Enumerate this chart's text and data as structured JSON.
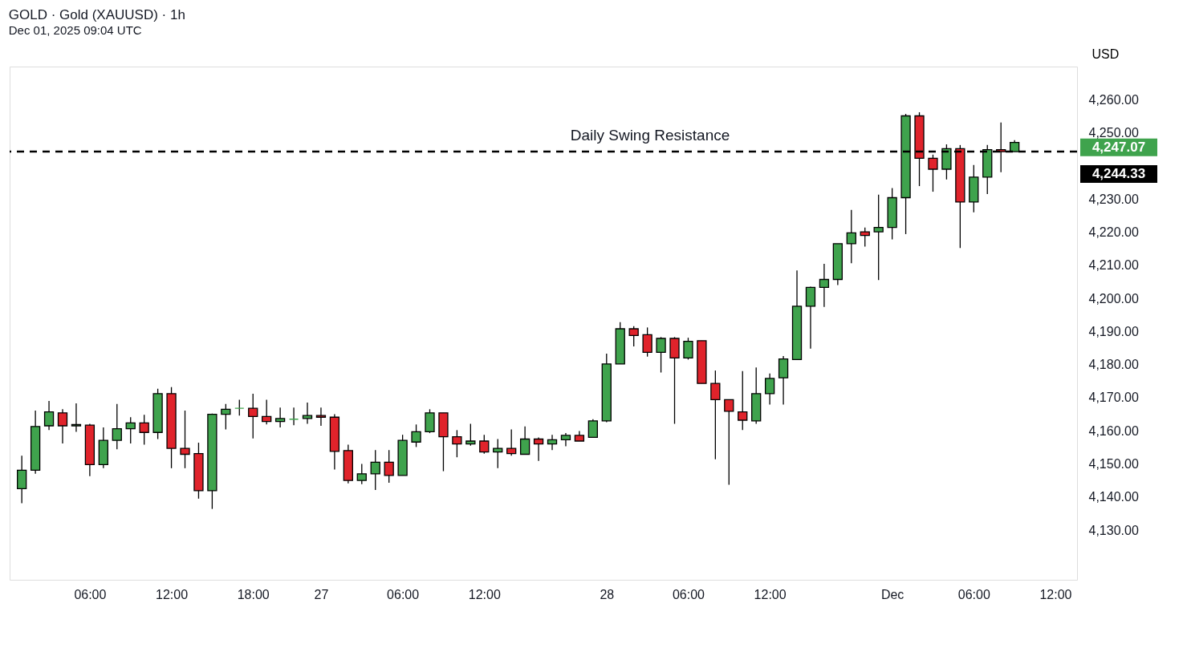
{
  "chart_data": {
    "type": "candlestick",
    "title": "GOLD · Gold (XAUUSD) · 1h",
    "subtitle": "Dec 01, 2025 09:04 UTC",
    "ylabel": "USD",
    "categories": [
      null,
      null,
      null,
      null,
      null,
      "06:00",
      null,
      null,
      null,
      null,
      null,
      "12:00",
      null,
      null,
      null,
      null,
      null,
      "18:00",
      null,
      null,
      null,
      null,
      "27",
      null,
      null,
      null,
      null,
      null,
      "06:00",
      null,
      null,
      null,
      null,
      null,
      "12:00",
      null,
      null,
      null,
      null,
      null,
      null,
      null,
      null,
      "28",
      null,
      null,
      null,
      null,
      null,
      "06:00",
      null,
      null,
      null,
      null,
      null,
      "12:00",
      null,
      null,
      null,
      null,
      null,
      null,
      null,
      null,
      "Dec",
      null,
      null,
      null,
      null,
      null,
      "06:00",
      null,
      null,
      null,
      null,
      null,
      "12:00",
      null
    ],
    "ohlc": [
      [
        4142.5,
        4152.5,
        4138.1,
        4148.1
      ],
      [
        4148.1,
        4166.1,
        4147.0,
        4161.3
      ],
      [
        4161.5,
        4169.0,
        4160.2,
        4165.7
      ],
      [
        4165.4,
        4166.5,
        4156.2,
        4161.5
      ],
      [
        4161.5,
        4168.3,
        4159.7,
        4161.9
      ],
      [
        4161.7,
        4162.1,
        4146.3,
        4149.8
      ],
      [
        4149.8,
        4161.0,
        4148.7,
        4157.1
      ],
      [
        4157.1,
        4168.1,
        4154.4,
        4160.6
      ],
      [
        4160.6,
        4164.1,
        4156.2,
        4162.4
      ],
      [
        4162.4,
        4164.8,
        4155.8,
        4159.5
      ],
      [
        4159.5,
        4172.7,
        4157.5,
        4171.2
      ],
      [
        4171.2,
        4173.2,
        4148.7,
        4154.7
      ],
      [
        4154.7,
        4166.1,
        4148.7,
        4152.9
      ],
      [
        4153.1,
        4156.4,
        4139.5,
        4141.9
      ],
      [
        4141.9,
        4165.2,
        4136.4,
        4165.0
      ],
      [
        4165.0,
        4168.1,
        4160.4,
        4166.5
      ],
      [
        4166.8,
        4169.4,
        4164.6,
        4166.8
      ],
      [
        4166.8,
        4171.2,
        4157.7,
        4164.3
      ],
      [
        4164.3,
        4169.4,
        4161.9,
        4162.8
      ],
      [
        4162.8,
        4167.0,
        4161.0,
        4163.7
      ],
      [
        4163.5,
        4167.0,
        4161.7,
        4163.5
      ],
      [
        4163.7,
        4168.5,
        4162.1,
        4164.6
      ],
      [
        4164.6,
        4167.0,
        4161.5,
        4164.1
      ],
      [
        4164.1,
        4165.0,
        4148.3,
        4153.8
      ],
      [
        4154.0,
        4155.8,
        4144.1,
        4145.0
      ],
      [
        4145.0,
        4150.0,
        4143.9,
        4147.0
      ],
      [
        4147.0,
        4154.2,
        4142.1,
        4150.5
      ],
      [
        4150.5,
        4154.2,
        4144.3,
        4146.5
      ],
      [
        4146.5,
        4158.8,
        4146.5,
        4157.1
      ],
      [
        4156.6,
        4161.9,
        4155.1,
        4159.7
      ],
      [
        4159.7,
        4166.5,
        4159.3,
        4165.4
      ],
      [
        4165.4,
        4165.4,
        4147.8,
        4158.2
      ],
      [
        4158.2,
        4160.2,
        4152.0,
        4156.0
      ],
      [
        4156.0,
        4162.1,
        4155.5,
        4156.9
      ],
      [
        4156.9,
        4158.8,
        4153.1,
        4153.6
      ],
      [
        4153.6,
        4157.5,
        4148.7,
        4154.7
      ],
      [
        4154.7,
        4160.4,
        4152.5,
        4153.1
      ],
      [
        4152.9,
        4161.3,
        4152.9,
        4157.5
      ],
      [
        4157.5,
        4158.0,
        4150.9,
        4156.0
      ],
      [
        4156.0,
        4158.8,
        4154.2,
        4157.3
      ],
      [
        4157.3,
        4159.3,
        4155.3,
        4158.6
      ],
      [
        4158.6,
        4159.9,
        4156.9,
        4156.9
      ],
      [
        4158.0,
        4163.5,
        4158.0,
        4163.0
      ],
      [
        4163.0,
        4183.3,
        4162.6,
        4180.2
      ],
      [
        4180.2,
        4192.8,
        4180.2,
        4190.8
      ],
      [
        4190.8,
        4191.6,
        4185.5,
        4188.8
      ],
      [
        4189.0,
        4191.2,
        4182.4,
        4183.7
      ],
      [
        4183.7,
        4188.3,
        4177.6,
        4187.9
      ],
      [
        4187.9,
        4188.3,
        4162.1,
        4182.0
      ],
      [
        4182.0,
        4188.1,
        4181.5,
        4187.0
      ],
      [
        4187.2,
        4187.2,
        4174.3,
        4174.3
      ],
      [
        4174.3,
        4178.2,
        4151.4,
        4169.4
      ],
      [
        4169.4,
        4169.4,
        4143.7,
        4165.9
      ],
      [
        4165.7,
        4178.0,
        4160.2,
        4163.2
      ],
      [
        4163.0,
        4179.1,
        4162.1,
        4171.2
      ],
      [
        4171.2,
        4177.3,
        4167.9,
        4175.8
      ],
      [
        4176.0,
        4182.6,
        4167.9,
        4181.7
      ],
      [
        4181.5,
        4208.4,
        4181.5,
        4197.6
      ],
      [
        4197.6,
        4203.5,
        4184.8,
        4203.3
      ],
      [
        4203.3,
        4210.4,
        4197.4,
        4205.7
      ],
      [
        4205.7,
        4216.5,
        4204.0,
        4216.5
      ],
      [
        4216.5,
        4226.7,
        4210.6,
        4219.8
      ],
      [
        4220.1,
        4221.4,
        4215.6,
        4219.0
      ],
      [
        4220.1,
        4231.3,
        4205.5,
        4221.4
      ],
      [
        4221.4,
        4233.3,
        4217.8,
        4230.4
      ],
      [
        4230.4,
        4255.7,
        4219.4,
        4255.1
      ],
      [
        4255.1,
        4256.2,
        4233.9,
        4242.3
      ],
      [
        4242.3,
        4243.4,
        4232.2,
        4239.0
      ],
      [
        4239.0,
        4246.5,
        4235.9,
        4245.2
      ],
      [
        4245.2,
        4246.3,
        4215.2,
        4229.1
      ],
      [
        4229.1,
        4240.3,
        4226.0,
        4236.6
      ],
      [
        4236.6,
        4246.3,
        4231.5,
        4244.9
      ],
      [
        4244.9,
        4253.1,
        4238.1,
        4244.3
      ],
      [
        4244.3,
        4247.8,
        4244.3,
        4247.07
      ],
      null,
      null,
      null,
      null
    ],
    "colors": [
      "#3fa34d",
      "#3fa34d",
      "#3fa34d",
      "#e0232b",
      "#3fa34d",
      "#e0232b",
      "#3fa34d",
      "#3fa34d",
      "#3fa34d",
      "#e0232b",
      "#3fa34d",
      "#e0232b",
      "#e0232b",
      "#e0232b",
      "#3fa34d",
      "#3fa34d",
      "#3fa34d",
      "#e0232b",
      "#e0232b",
      "#3fa34d",
      "#3fa34d",
      "#3fa34d",
      "#e0232b",
      "#e0232b",
      "#e0232b",
      "#3fa34d",
      "#3fa34d",
      "#e0232b",
      "#3fa34d",
      "#3fa34d",
      "#3fa34d",
      "#e0232b",
      "#e0232b",
      "#3fa34d",
      "#e0232b",
      "#3fa34d",
      "#e0232b",
      "#3fa34d",
      "#e0232b",
      "#3fa34d",
      "#3fa34d",
      "#e0232b",
      "#3fa34d",
      "#3fa34d",
      "#3fa34d",
      "#e0232b",
      "#e0232b",
      "#3fa34d",
      "#e0232b",
      "#3fa34d",
      "#e0232b",
      "#e0232b",
      "#e0232b",
      "#e0232b",
      "#3fa34d",
      "#3fa34d",
      "#3fa34d",
      "#3fa34d",
      "#3fa34d",
      "#3fa34d",
      "#3fa34d",
      "#3fa34d",
      "#e0232b",
      "#3fa34d",
      "#3fa34d",
      "#3fa34d",
      "#e0232b",
      "#e0232b",
      "#3fa34d",
      "#e0232b",
      "#3fa34d",
      "#3fa34d",
      "#e0232b",
      "#3fa34d",
      null,
      null,
      null,
      null
    ],
    "ylim": [
      4115,
      4270
    ],
    "yticks": [
      {
        "value": 4130,
        "label": "4,130.00"
      },
      {
        "value": 4140,
        "label": "4,140.00"
      },
      {
        "value": 4150,
        "label": "4,150.00"
      },
      {
        "value": 4160,
        "label": "4,160.00"
      },
      {
        "value": 4170,
        "label": "4,170.00"
      },
      {
        "value": 4180,
        "label": "4,180.00"
      },
      {
        "value": 4190,
        "label": "4,190.00"
      },
      {
        "value": 4200,
        "label": "4,200.00"
      },
      {
        "value": 4210,
        "label": "4,210.00"
      },
      {
        "value": 4220,
        "label": "4,220.00"
      },
      {
        "value": 4230,
        "label": "4,230.00"
      },
      {
        "value": 4250,
        "label": "4,250.00"
      },
      {
        "value": 4260,
        "label": "4,260.00"
      }
    ],
    "ref_lines": [
      {
        "axis": "y",
        "value": 4244.33,
        "label": "Daily Swing Resistance",
        "color": "#000000",
        "line_style": "dashed"
      }
    ],
    "annotations": [
      "4,247.07",
      "4,244.33"
    ],
    "grid": false
  }
}
